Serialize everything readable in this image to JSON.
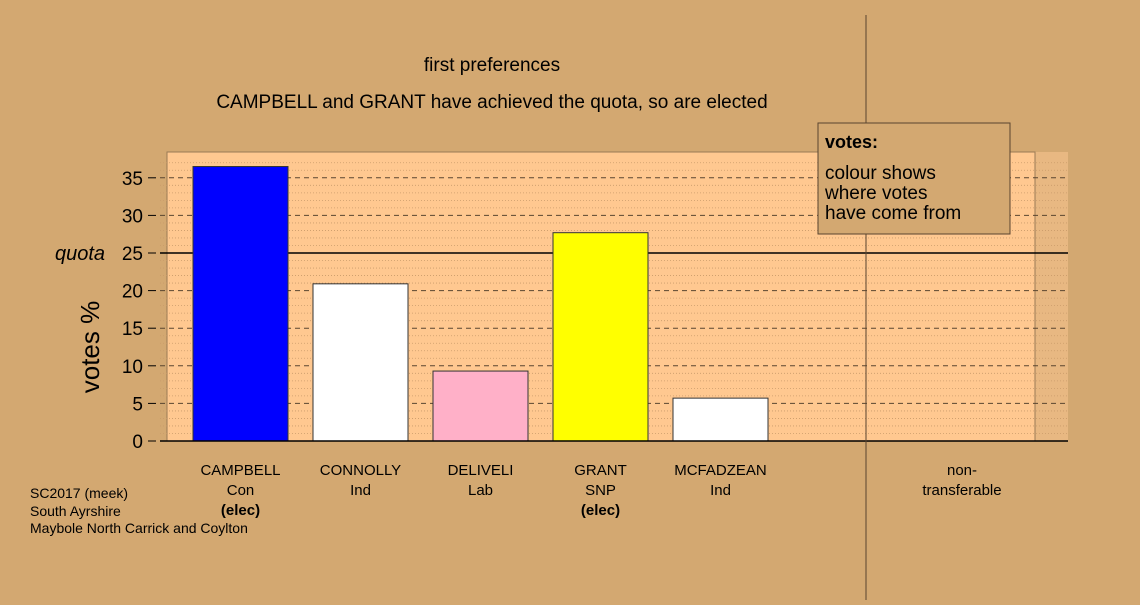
{
  "chart_data": {
    "type": "bar",
    "title": "first preferences",
    "subtitle": "CAMPBELL and GRANT have achieved the quota, so are elected",
    "ylabel": "votes %",
    "ylim": [
      0,
      37.5
    ],
    "yticks": [
      0,
      5,
      10,
      15,
      20,
      25,
      30,
      35
    ],
    "quota": 25,
    "quota_label": "quota",
    "categories": [
      {
        "name": "CAMPBELL",
        "party": "Con",
        "status": "(elec)",
        "value": 36.5,
        "color": "#0000ff"
      },
      {
        "name": "CONNOLLY",
        "party": "Ind",
        "status": "",
        "value": 20.9,
        "color": "#ffffff"
      },
      {
        "name": "DELIVELI",
        "party": "Lab",
        "status": "",
        "value": 9.3,
        "color": "#ffb0c8"
      },
      {
        "name": "GRANT",
        "party": "SNP",
        "status": "(elec)",
        "value": 27.7,
        "color": "#ffff00"
      },
      {
        "name": "MCFADZEAN",
        "party": "Ind",
        "status": "",
        "value": 5.7,
        "color": "#ffffff"
      }
    ],
    "nontransferable": {
      "label1": "non-",
      "label2": "transferable",
      "value": 0
    },
    "legend": {
      "title": "votes:",
      "lines": [
        "colour shows",
        "where votes",
        "have come from"
      ],
      "placement": "top-right"
    },
    "footnote": [
      "SC2017 (meek)",
      "South Ayrshire",
      "Maybole North Carrick and Coylton"
    ],
    "colors": {
      "background": "#d3a871",
      "plot_area": "#ffc890"
    }
  }
}
